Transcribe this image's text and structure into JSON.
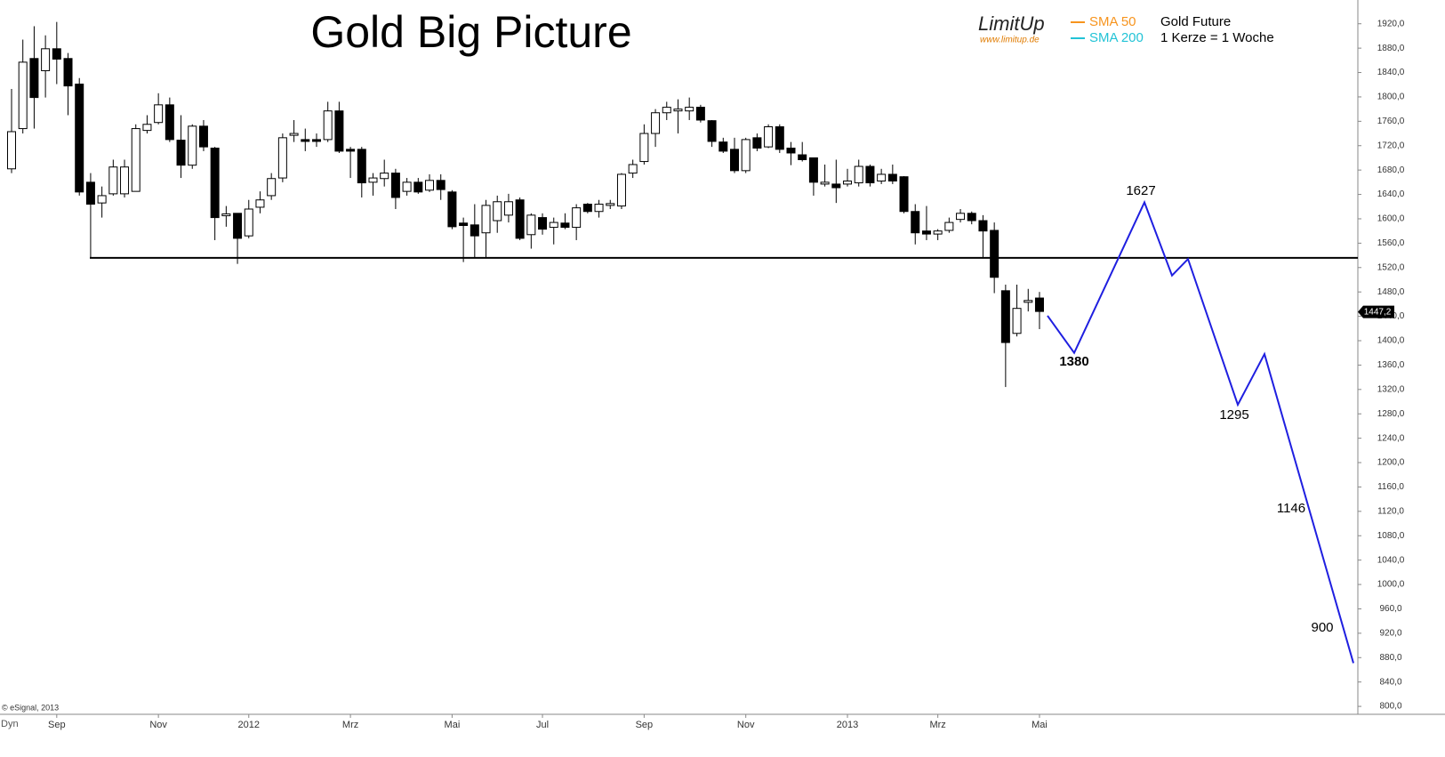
{
  "chart_data": {
    "type": "candlestick",
    "title": "Gold Big Picture",
    "brand": "LimitUp",
    "brand_url": "www.limitup.de",
    "indicators": [
      {
        "name": "SMA 50",
        "color": "#f7941d"
      },
      {
        "name": "SMA 200",
        "color": "#22c3d6"
      }
    ],
    "info": [
      "Gold Future",
      "1 Kerze = 1 Woche"
    ],
    "copyright": "© eSignal, 2013",
    "toolbar": "Dyn",
    "up_color": "#ffffff",
    "down_color": "#000000",
    "categories": [
      null,
      null,
      null,
      null,
      "Sep",
      null,
      null,
      null,
      null,
      null,
      null,
      null,
      null,
      "Nov",
      null,
      null,
      null,
      null,
      null,
      null,
      null,
      "2012",
      null,
      null,
      null,
      null,
      null,
      null,
      null,
      null,
      "Mrz",
      null,
      null,
      null,
      null,
      null,
      null,
      null,
      null,
      "Mai",
      null,
      null,
      null,
      null,
      null,
      null,
      null,
      "Jul",
      null,
      null,
      null,
      null,
      null,
      null,
      null,
      null,
      "Sep",
      null,
      null,
      null,
      null,
      null,
      null,
      null,
      null,
      "Nov",
      null,
      null,
      null,
      null,
      null,
      null,
      null,
      null,
      "2013",
      null,
      null,
      null,
      null,
      null,
      null,
      null,
      "Mrz",
      null,
      null,
      null,
      null,
      null,
      null,
      null,
      null,
      "Mai"
    ],
    "open": [
      1682,
      1748,
      1863,
      1843,
      1879,
      1863,
      1821,
      1660,
      1626,
      1641,
      1641,
      1645,
      1745,
      1758,
      1787,
      1729,
      1688,
      1752,
      1716,
      1605,
      1609,
      1572,
      1619,
      1638,
      1667,
      1737,
      1730,
      1730,
      1730,
      1777,
      1714,
      1714,
      1660,
      1666,
      1675,
      1645,
      1660,
      1647,
      1663,
      1644,
      1593,
      1590,
      1577,
      1597,
      1606,
      1631,
      1574,
      1602,
      1586,
      1593,
      1586,
      1624,
      1612,
      1622,
      1621,
      1675,
      1694,
      1740,
      1774,
      1777,
      1777,
      1783,
      1761,
      1726,
      1714,
      1679,
      1733,
      1718,
      1751,
      1716,
      1705,
      1700,
      1657,
      1657,
      1657,
      1659,
      1686,
      1662,
      1673,
      1669,
      1612,
      1580,
      1575,
      1581,
      1599,
      1609,
      1597,
      1581,
      1482,
      1412,
      1463,
      1470
    ],
    "high": [
      1813,
      1894,
      1916,
      1901,
      1923,
      1872,
      1831,
      1675,
      1653,
      1697,
      1697,
      1755,
      1770,
      1806,
      1799,
      1770,
      1755,
      1762,
      1718,
      1621,
      1609,
      1631,
      1645,
      1675,
      1740,
      1762,
      1748,
      1740,
      1792,
      1792,
      1718,
      1718,
      1675,
      1697,
      1682,
      1667,
      1667,
      1673,
      1673,
      1647,
      1602,
      1624,
      1631,
      1638,
      1641,
      1635,
      1609,
      1609,
      1602,
      1609,
      1624,
      1626,
      1631,
      1631,
      1675,
      1697,
      1755,
      1780,
      1792,
      1796,
      1799,
      1787,
      1762,
      1733,
      1733,
      1733,
      1740,
      1755,
      1755,
      1726,
      1726,
      1700,
      1689,
      1697,
      1682,
      1697,
      1689,
      1682,
      1689,
      1670,
      1624,
      1621,
      1583,
      1602,
      1616,
      1612,
      1606,
      1594,
      1492,
      1492,
      1485,
      1480
    ],
    "low": [
      1675,
      1740,
      1748,
      1799,
      1821,
      1770,
      1638,
      1536,
      1602,
      1638,
      1635,
      1645,
      1740,
      1755,
      1726,
      1667,
      1682,
      1711,
      1565,
      1587,
      1526,
      1568,
      1609,
      1631,
      1660,
      1726,
      1711,
      1718,
      1726,
      1708,
      1667,
      1635,
      1638,
      1653,
      1616,
      1638,
      1641,
      1644,
      1631,
      1583,
      1529,
      1536,
      1536,
      1577,
      1594,
      1565,
      1551,
      1574,
      1558,
      1583,
      1565,
      1609,
      1602,
      1616,
      1616,
      1667,
      1689,
      1718,
      1762,
      1740,
      1762,
      1758,
      1718,
      1708,
      1675,
      1675,
      1711,
      1716,
      1708,
      1688,
      1694,
      1638,
      1653,
      1626,
      1653,
      1653,
      1653,
      1657,
      1657,
      1609,
      1558,
      1565,
      1565,
      1577,
      1594,
      1591,
      1536,
      1478,
      1324,
      1407,
      1448,
      1419
    ],
    "close": [
      1743,
      1857,
      1799,
      1879,
      1862,
      1818,
      1644,
      1624,
      1638,
      1685,
      1685,
      1748,
      1755,
      1787,
      1730,
      1688,
      1752,
      1718,
      1602,
      1608,
      1568,
      1616,
      1631,
      1666,
      1733,
      1740,
      1727,
      1727,
      1777,
      1711,
      1711,
      1659,
      1667,
      1675,
      1635,
      1660,
      1644,
      1663,
      1648,
      1587,
      1589,
      1572,
      1622,
      1628,
      1628,
      1568,
      1606,
      1583,
      1594,
      1586,
      1618,
      1612,
      1624,
      1625,
      1673,
      1689,
      1740,
      1774,
      1783,
      1780,
      1783,
      1762,
      1727,
      1711,
      1679,
      1730,
      1716,
      1751,
      1714,
      1708,
      1697,
      1660,
      1660,
      1651,
      1662,
      1686,
      1659,
      1673,
      1662,
      1612,
      1577,
      1575,
      1580,
      1594,
      1609,
      1597,
      1580,
      1504,
      1397,
      1453,
      1466,
      1448
    ],
    "support_level": 1536,
    "support_color": "#000000",
    "forecast": {
      "color": "#1f1fe0",
      "values": [
        1441,
        1380,
        1627,
        1507,
        1534,
        1295,
        1378,
        871
      ]
    },
    "annotations": [
      "1380",
      "1627",
      "1295",
      "1146",
      "900"
    ],
    "last_price": {
      "value": 1447.2,
      "label": "1447,2"
    },
    "ylim": [
      787,
      1959
    ],
    "yticks": [
      {
        "value": 800,
        "label": "800,0"
      },
      {
        "value": 840,
        "label": "840,0"
      },
      {
        "value": 880,
        "label": "880,0"
      },
      {
        "value": 920,
        "label": "920,0"
      },
      {
        "value": 960,
        "label": "960,0"
      },
      {
        "value": 1000,
        "label": "1000,0"
      },
      {
        "value": 1040,
        "label": "1040,0"
      },
      {
        "value": 1080,
        "label": "1080,0"
      },
      {
        "value": 1120,
        "label": "1120,0"
      },
      {
        "value": 1160,
        "label": "1160,0"
      },
      {
        "value": 1200,
        "label": "1200,0"
      },
      {
        "value": 1240,
        "label": "1240,0"
      },
      {
        "value": 1280,
        "label": "1280,0"
      },
      {
        "value": 1320,
        "label": "1320,0"
      },
      {
        "value": 1360,
        "label": "1360,0"
      },
      {
        "value": 1400,
        "label": "1400,0"
      },
      {
        "value": 1440,
        "label": "1440,0"
      },
      {
        "value": 1480,
        "label": "1480,0"
      },
      {
        "value": 1520,
        "label": "1520,0"
      },
      {
        "value": 1560,
        "label": "1560,0"
      },
      {
        "value": 1600,
        "label": "1600,0"
      },
      {
        "value": 1640,
        "label": "1640,0"
      },
      {
        "value": 1680,
        "label": "1680,0"
      },
      {
        "value": 1720,
        "label": "1720,0"
      },
      {
        "value": 1760,
        "label": "1760,0"
      },
      {
        "value": 1800,
        "label": "1800,0"
      },
      {
        "value": 1840,
        "label": "1840,0"
      },
      {
        "value": 1880,
        "label": "1880,0"
      },
      {
        "value": 1920,
        "label": "1920,0"
      }
    ]
  }
}
